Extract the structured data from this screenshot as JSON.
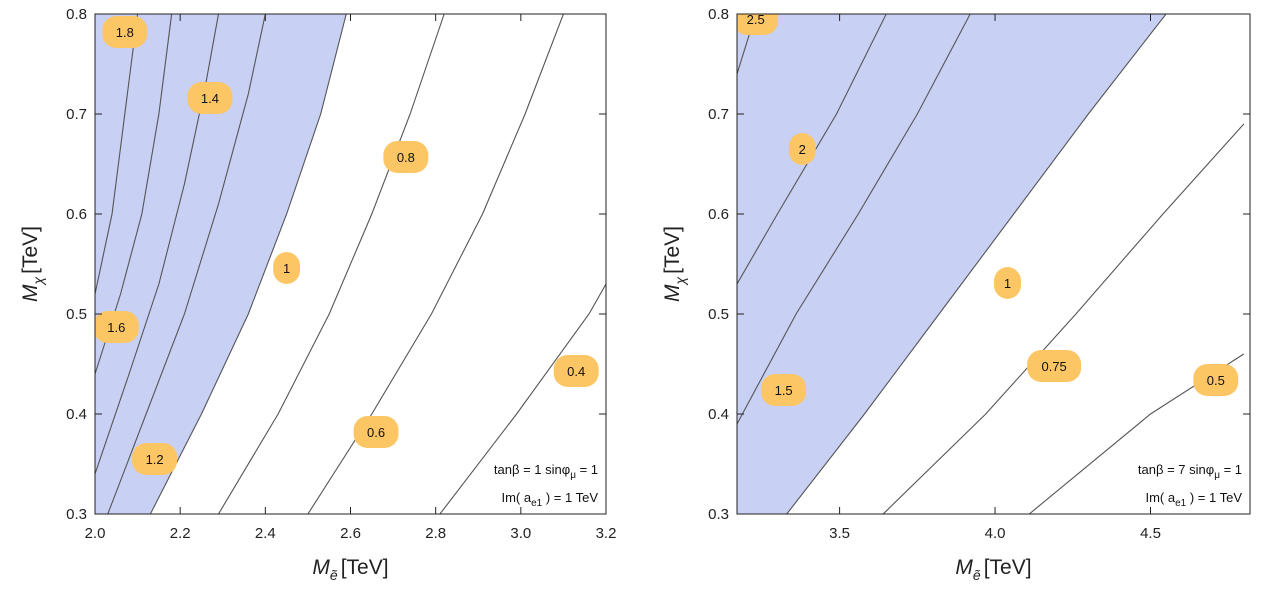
{
  "chart_data": [
    {
      "type": "contour",
      "xlabel_symbol": "M",
      "xlabel_subscript": "ẽ",
      "xlabel_unit": "[TeV]",
      "ylabel_symbol": "M",
      "ylabel_subscript": "χ",
      "ylabel_unit": "[TeV]",
      "xlim": [
        2.0,
        3.2
      ],
      "ylim": [
        0.3,
        0.8
      ],
      "x_ticks": [
        2.0,
        2.2,
        2.4,
        2.6,
        2.8,
        3.0,
        3.2
      ],
      "x_tick_labels": [
        "2.0",
        "2.2",
        "2.4",
        "2.6",
        "2.8",
        "3.0",
        "3.2"
      ],
      "y_ticks": [
        0.3,
        0.4,
        0.5,
        0.6,
        0.7,
        0.8
      ],
      "y_tick_labels": [
        "0.3",
        "0.4",
        "0.5",
        "0.6",
        "0.7",
        "0.8"
      ],
      "shaded_region": {
        "color": "#c8d0f4",
        "boundary": [
          [
            2.13,
            0.3
          ],
          [
            2.25,
            0.4
          ],
          [
            2.36,
            0.5
          ],
          [
            2.45,
            0.6
          ],
          [
            2.53,
            0.7
          ],
          [
            2.59,
            0.8
          ]
        ]
      },
      "contours": [
        {
          "label": "1.8",
          "points": [
            [
              2.0,
              0.52
            ],
            [
              2.04,
              0.6
            ],
            [
              2.07,
              0.7
            ],
            [
              2.1,
              0.8
            ]
          ]
        },
        {
          "label": "1.6",
          "points": [
            [
              2.0,
              0.44
            ],
            [
              2.06,
              0.52
            ],
            [
              2.11,
              0.6
            ],
            [
              2.15,
              0.7
            ],
            [
              2.18,
              0.8
            ]
          ]
        },
        {
          "label": "1.4",
          "points": [
            [
              2.0,
              0.34
            ],
            [
              2.08,
              0.44
            ],
            [
              2.15,
              0.53
            ],
            [
              2.21,
              0.63
            ],
            [
              2.26,
              0.73
            ],
            [
              2.29,
              0.8
            ]
          ]
        },
        {
          "label": "1.2",
          "points": [
            [
              2.03,
              0.3
            ],
            [
              2.12,
              0.4
            ],
            [
              2.21,
              0.5
            ],
            [
              2.29,
              0.61
            ],
            [
              2.36,
              0.72
            ],
            [
              2.4,
              0.8
            ]
          ]
        },
        {
          "label": "1",
          "points": [
            [
              2.13,
              0.3
            ],
            [
              2.25,
              0.4
            ],
            [
              2.36,
              0.5
            ],
            [
              2.45,
              0.6
            ],
            [
              2.53,
              0.7
            ],
            [
              2.59,
              0.8
            ]
          ]
        },
        {
          "label": "0.8",
          "points": [
            [
              2.29,
              0.3
            ],
            [
              2.43,
              0.4
            ],
            [
              2.55,
              0.5
            ],
            [
              2.65,
              0.6
            ],
            [
              2.74,
              0.7
            ],
            [
              2.82,
              0.8
            ]
          ]
        },
        {
          "label": "0.6",
          "points": [
            [
              2.5,
              0.3
            ],
            [
              2.65,
              0.4
            ],
            [
              2.79,
              0.5
            ],
            [
              2.91,
              0.6
            ],
            [
              3.01,
              0.7
            ],
            [
              3.1,
              0.8
            ]
          ]
        },
        {
          "label": "0.4",
          "points": [
            [
              2.81,
              0.3
            ],
            [
              2.99,
              0.4
            ],
            [
              3.16,
              0.5
            ],
            [
              3.2,
              0.53
            ]
          ]
        }
      ],
      "contour_labels": [
        {
          "text": "1.8",
          "x": 2.07,
          "y": 0.782
        },
        {
          "text": "1.4",
          "x": 2.27,
          "y": 0.716
        },
        {
          "text": "0.8",
          "x": 2.73,
          "y": 0.657
        },
        {
          "text": "1",
          "x": 2.45,
          "y": 0.546
        },
        {
          "text": "1.6",
          "x": 2.05,
          "y": 0.487
        },
        {
          "text": "0.4",
          "x": 3.13,
          "y": 0.443
        },
        {
          "text": "0.6",
          "x": 2.66,
          "y": 0.382
        },
        {
          "text": "1.2",
          "x": 2.14,
          "y": 0.355
        }
      ],
      "annotation_line1": "tanβ = 1  sinφ",
      "annotation_line1_sub": "μ",
      "annotation_line1_end": " = 1",
      "annotation_line2": "Im( a",
      "annotation_line2_sub": "e1",
      "annotation_line2_end": " ) = 1  TeV"
    },
    {
      "type": "contour",
      "xlabel_symbol": "M",
      "xlabel_subscript": "ẽ",
      "xlabel_unit": "[TeV]",
      "ylabel_symbol": "M",
      "ylabel_subscript": "χ",
      "ylabel_unit": "[TeV]",
      "xlim": [
        3.17,
        4.82
      ],
      "ylim": [
        0.3,
        0.8
      ],
      "x_ticks": [
        3.5,
        4.0,
        4.5
      ],
      "x_tick_labels": [
        "3.5",
        "4.0",
        "4.5"
      ],
      "y_ticks": [
        0.3,
        0.4,
        0.5,
        0.6,
        0.7,
        0.8
      ],
      "y_tick_labels": [
        "0.3",
        "0.4",
        "0.5",
        "0.6",
        "0.7",
        "0.8"
      ],
      "shaded_region": {
        "color": "#c8d0f4",
        "boundary": [
          [
            3.33,
            0.3
          ],
          [
            3.58,
            0.4
          ],
          [
            3.82,
            0.5
          ],
          [
            4.06,
            0.6
          ],
          [
            4.3,
            0.7
          ],
          [
            4.55,
            0.8
          ]
        ]
      },
      "contours": [
        {
          "label": "2.5",
          "points": [
            [
              3.17,
              0.74
            ],
            [
              3.23,
              0.8
            ]
          ]
        },
        {
          "label": "2",
          "points": [
            [
              3.17,
              0.53
            ],
            [
              3.3,
              0.6
            ],
            [
              3.49,
              0.7
            ],
            [
              3.65,
              0.8
            ]
          ]
        },
        {
          "label": "1.5",
          "points": [
            [
              3.17,
              0.39
            ],
            [
              3.36,
              0.5
            ],
            [
              3.56,
              0.6
            ],
            [
              3.75,
              0.7
            ],
            [
              3.92,
              0.8
            ]
          ]
        },
        {
          "label": "1",
          "points": [
            [
              3.33,
              0.3
            ],
            [
              3.58,
              0.4
            ],
            [
              3.82,
              0.5
            ],
            [
              4.06,
              0.6
            ],
            [
              4.3,
              0.7
            ],
            [
              4.55,
              0.8
            ]
          ]
        },
        {
          "label": "0.75",
          "points": [
            [
              3.64,
              0.3
            ],
            [
              3.97,
              0.4
            ],
            [
              4.26,
              0.5
            ],
            [
              4.54,
              0.6
            ],
            [
              4.8,
              0.69
            ]
          ]
        },
        {
          "label": "0.5",
          "points": [
            [
              4.11,
              0.3
            ],
            [
              4.5,
              0.4
            ],
            [
              4.8,
              0.46
            ]
          ]
        }
      ],
      "contour_labels": [
        {
          "text": "2.5",
          "x": 3.23,
          "y": 0.795
        },
        {
          "text": "2",
          "x": 3.38,
          "y": 0.665
        },
        {
          "text": "1",
          "x": 4.04,
          "y": 0.531
        },
        {
          "text": "1.5",
          "x": 3.32,
          "y": 0.424
        },
        {
          "text": "0.75",
          "x": 4.19,
          "y": 0.448
        },
        {
          "text": "0.5",
          "x": 4.71,
          "y": 0.434
        }
      ],
      "annotation_line1": "tanβ = 7  sinφ",
      "annotation_line1_sub": "μ",
      "annotation_line1_end": " = 1",
      "annotation_line2": "Im( a",
      "annotation_line2_sub": "e1",
      "annotation_line2_end": " ) = 1  TeV"
    }
  ],
  "colors": {
    "shade": "#c8d0f4",
    "contour_line": "#555555",
    "label_bubble": "#fdc665",
    "frame": "#222222"
  }
}
